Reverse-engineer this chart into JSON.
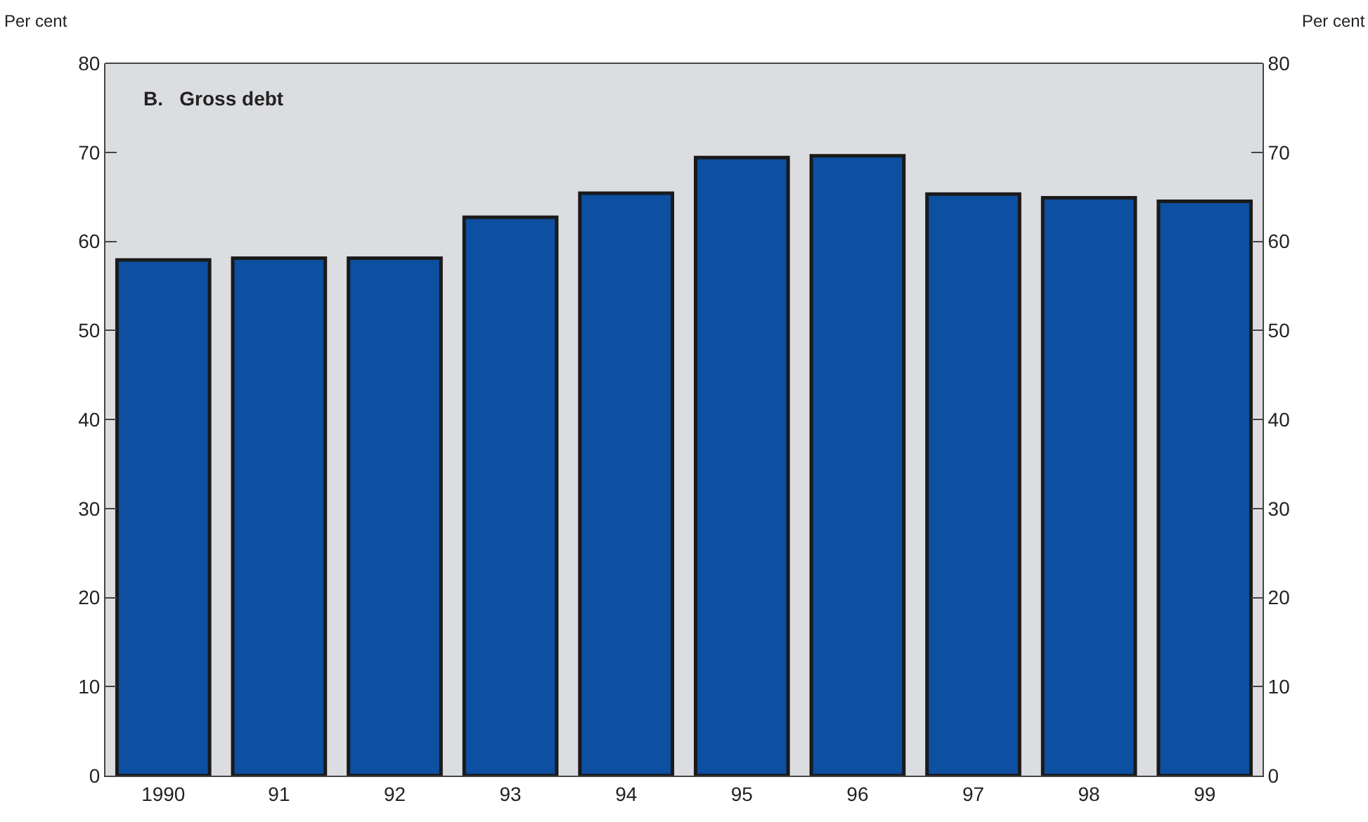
{
  "chart_data": {
    "type": "bar",
    "title": "B.   Gross debt",
    "ylabel": "Per cent",
    "y2label": "Per cent",
    "categories": [
      "1990",
      "91",
      "92",
      "93",
      "94",
      "95",
      "96",
      "97",
      "98",
      "99"
    ],
    "values": [
      57.9,
      58.1,
      58.1,
      62.7,
      65.4,
      69.4,
      69.6,
      65.3,
      64.9,
      64.5
    ],
    "color": "#0d4fa0",
    "ylim": [
      0,
      80
    ],
    "yticks": [
      0,
      10,
      20,
      30,
      40,
      50,
      60,
      70,
      80
    ],
    "y2lim": [
      0,
      80
    ],
    "y2ticks": [
      0,
      10,
      20,
      30,
      40,
      50,
      60,
      70,
      80
    ],
    "grid": false,
    "legend": false
  }
}
